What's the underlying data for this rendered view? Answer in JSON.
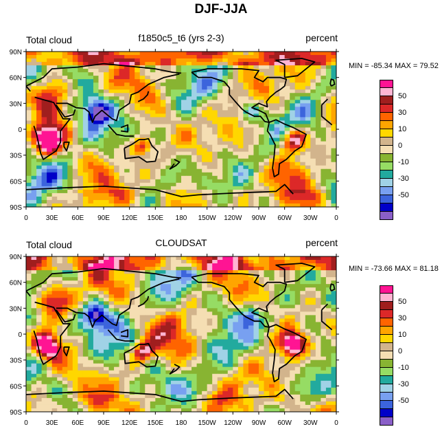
{
  "title": "DJF-JJA",
  "lat_ticks": [
    "90N",
    "60N",
    "30N",
    "0",
    "30S",
    "60S",
    "90S"
  ],
  "lon_ticks": [
    "0",
    "30E",
    "60E",
    "90E",
    "120E",
    "150E",
    "180",
    "150W",
    "120W",
    "90W",
    "60W",
    "30W",
    "0"
  ],
  "colorbar": {
    "colors": [
      "#8a5fc8",
      "#0000c8",
      "#3c64dc",
      "#78a0f0",
      "#a0d2e6",
      "#22aa9e",
      "#96dc64",
      "#88b432",
      "#f5deb3",
      "#d2b48c",
      "#ffd700",
      "#ffa500",
      "#ff6400",
      "#dc2828",
      "#a01e1e",
      "#ffb4d2",
      "#ff1493"
    ],
    "labels": [
      "-50",
      "-30",
      "-10",
      "0",
      "10",
      "30",
      "50"
    ]
  },
  "panels": [
    {
      "left_label": "Total cloud",
      "center_label": "f1850c5_t6 (yrs 2-3)",
      "right_label": "percent",
      "minmax": "MIN = -85.34 MAX =  79.52"
    },
    {
      "left_label": "Total cloud",
      "center_label": "CLOUDSAT",
      "right_label": "percent",
      "minmax": "MIN = -73.66 MAX =  81.18"
    }
  ]
}
